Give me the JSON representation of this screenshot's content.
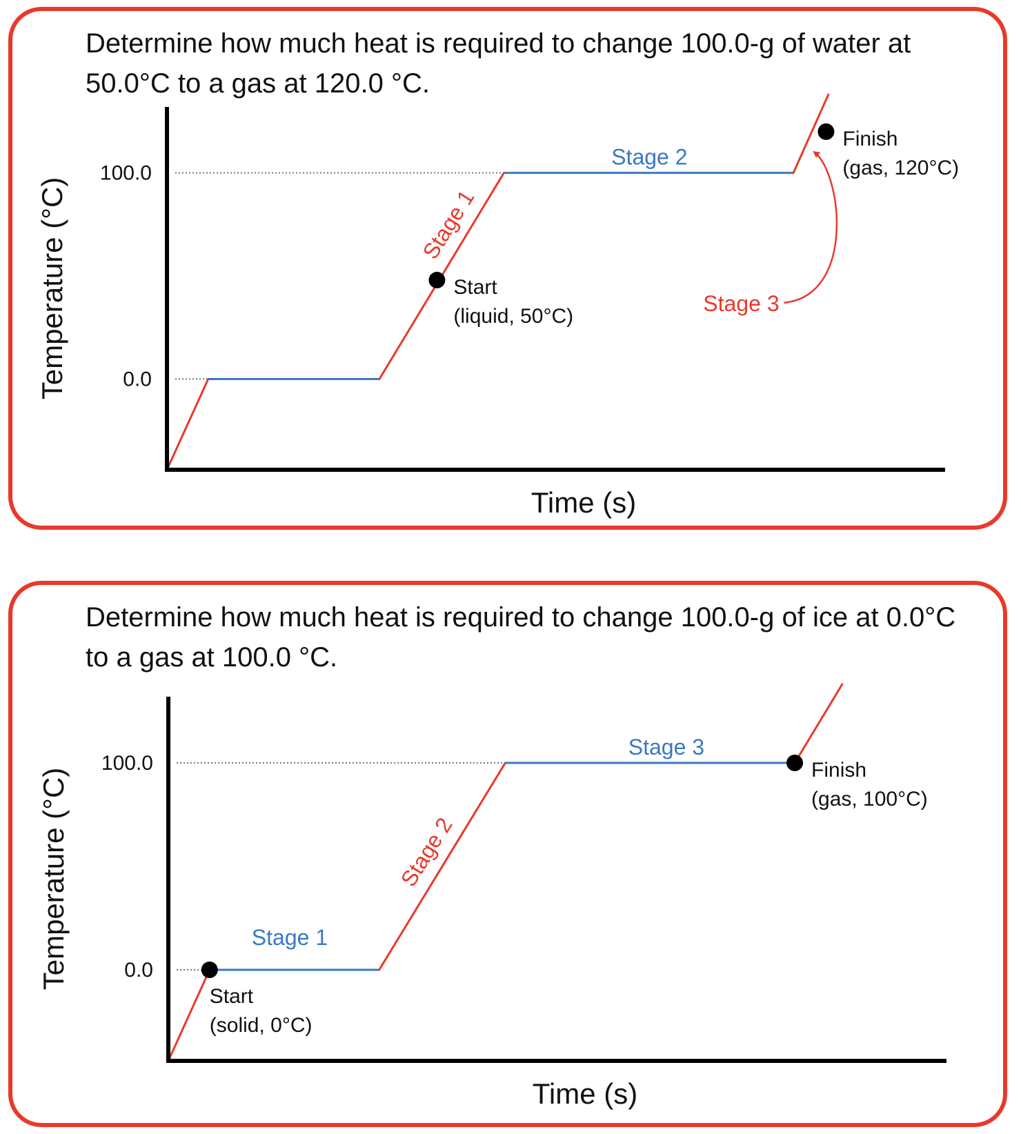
{
  "colors": {
    "border": "#e8392b",
    "heating_segment": "#e8392b",
    "phase_change_segment": "#3a78c4",
    "stage_red": "#e8392b",
    "stage_blue": "#3a78c4",
    "axis": "#000000",
    "guide_line": "#777777",
    "marker": "#000000"
  },
  "chart_data": [
    {
      "type": "line",
      "question": "Determine how much heat is required to change 100.0-g of water at 50.0°C to a gas at 120.0 °C.",
      "xlabel": "Time (s)",
      "ylabel": "Temperature (°C)",
      "yticks": [
        {
          "value": 0,
          "label": "0.0"
        },
        {
          "value": 100,
          "label": "100.0"
        }
      ],
      "xlim": [
        0,
        10
      ],
      "ylim": [
        -44,
        132
      ],
      "grid": false,
      "series": [
        {
          "x": [
            0,
            0.53,
            2.73,
            4.33,
            8.05,
            8.5
          ],
          "y": [
            -44,
            0,
            0,
            100,
            100,
            138
          ]
        }
      ],
      "segment_kinds": [
        "heating",
        "phase-change",
        "heating",
        "phase-change",
        "heating"
      ],
      "markers": [
        {
          "x": 3.47,
          "y": 48,
          "label_line1": "Start",
          "label_line2": "(liquid, 50°C)"
        },
        {
          "x": 8.47,
          "y": 120,
          "label_line1": "Finish",
          "label_line2": "(gas, 120°C)"
        }
      ],
      "stages": [
        {
          "label": "Stage 1",
          "color": "red",
          "x": 3.7,
          "y": 73,
          "rotate": -58
        },
        {
          "label": "Stage 2",
          "color": "blue",
          "x": 6.2,
          "y": 104,
          "rotate": 0
        },
        {
          "label": "Stage 3",
          "color": "red",
          "x": 7.38,
          "y": 33,
          "rotate": 0,
          "arrow_to": {
            "x": 8.32,
            "y": 110
          }
        }
      ]
    },
    {
      "type": "line",
      "question": "Determine how much heat is required to change 100.0-g of ice at 0.0°C to a gas at 100.0 °C.",
      "xlabel": "Time (s)",
      "ylabel": "Temperature (°C)",
      "yticks": [
        {
          "value": 0,
          "label": "0.0"
        },
        {
          "value": 100,
          "label": "100.0"
        }
      ],
      "xlim": [
        0,
        10
      ],
      "ylim": [
        -44,
        132
      ],
      "grid": false,
      "series": [
        {
          "x": [
            0,
            0.53,
            2.71,
            4.33,
            8.05,
            8.66
          ],
          "y": [
            -44,
            0,
            0,
            100,
            100,
            138
          ]
        }
      ],
      "segment_kinds": [
        "heating",
        "phase-change",
        "heating",
        "phase-change",
        "heating"
      ],
      "markers": [
        {
          "x": 0.53,
          "y": 0,
          "label_line1": "Start",
          "label_line2": "(solid, 0°C)"
        },
        {
          "x": 8.05,
          "y": 100,
          "label_line1": "Finish",
          "label_line2": "(gas, 100°C)"
        }
      ],
      "stages": [
        {
          "label": "Stage 1",
          "color": "blue",
          "x": 1.56,
          "y": 12,
          "rotate": 0
        },
        {
          "label": "Stage 2",
          "color": "red",
          "x": 3.4,
          "y": 55,
          "rotate": -58
        },
        {
          "label": "Stage 3",
          "color": "blue",
          "x": 6.4,
          "y": 104,
          "rotate": 0
        }
      ]
    }
  ]
}
